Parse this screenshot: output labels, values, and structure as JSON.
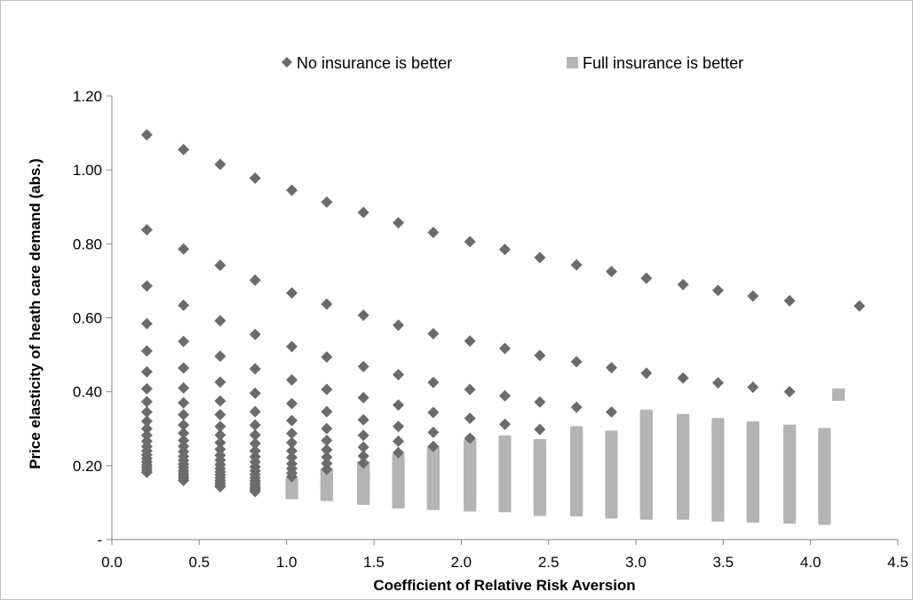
{
  "chart_data": {
    "type": "scatter",
    "title": "",
    "xlabel": "Coefficient of Relative Risk Aversion",
    "ylabel": "Price elasticity of heath care demand (abs.)",
    "xlim": [
      0,
      4.5
    ],
    "ylim": [
      0,
      1.2
    ],
    "x_ticks": [
      "0.0",
      "0.5",
      "1.0",
      "1.5",
      "2.0",
      "2.5",
      "3.0",
      "3.5",
      "4.0",
      "4.5"
    ],
    "y_ticks": [
      "-",
      "0.20",
      "0.40",
      "0.60",
      "0.80",
      "1.00",
      "1.20"
    ],
    "grid": false,
    "legend_position": "top",
    "columns": [
      0.2,
      0.41,
      0.62,
      0.82,
      1.03,
      1.23,
      1.44,
      1.64,
      1.84,
      2.05,
      2.25,
      2.45,
      2.66,
      2.86,
      3.06,
      3.27,
      3.47,
      3.67,
      3.88,
      4.08,
      4.28
    ],
    "series": [
      {
        "name": "No insurance is better",
        "color": "#6b6b6b",
        "marker": "diamond",
        "points": [
          [
            0.2,
            1.095
          ],
          [
            0.41,
            1.055
          ],
          [
            0.62,
            1.015
          ],
          [
            0.82,
            0.978
          ],
          [
            1.03,
            0.945
          ],
          [
            1.23,
            0.913
          ],
          [
            1.44,
            0.885
          ],
          [
            1.64,
            0.857
          ],
          [
            1.84,
            0.831
          ],
          [
            2.05,
            0.806
          ],
          [
            2.25,
            0.785
          ],
          [
            2.45,
            0.763
          ],
          [
            2.66,
            0.743
          ],
          [
            2.86,
            0.725
          ],
          [
            3.06,
            0.707
          ],
          [
            3.27,
            0.69
          ],
          [
            3.47,
            0.674
          ],
          [
            3.67,
            0.659
          ],
          [
            3.88,
            0.646
          ],
          [
            4.28,
            0.632
          ],
          [
            0.2,
            0.838
          ],
          [
            0.41,
            0.786
          ],
          [
            0.62,
            0.742
          ],
          [
            0.82,
            0.702
          ],
          [
            1.03,
            0.667
          ],
          [
            1.23,
            0.637
          ],
          [
            1.44,
            0.607
          ],
          [
            1.64,
            0.58
          ],
          [
            1.84,
            0.557
          ],
          [
            2.05,
            0.537
          ],
          [
            2.25,
            0.517
          ],
          [
            2.45,
            0.498
          ],
          [
            2.66,
            0.481
          ],
          [
            2.86,
            0.465
          ],
          [
            3.06,
            0.45
          ],
          [
            3.27,
            0.437
          ],
          [
            3.47,
            0.424
          ],
          [
            3.67,
            0.412
          ],
          [
            3.88,
            0.4
          ],
          [
            0.2,
            0.686
          ],
          [
            0.41,
            0.634
          ],
          [
            0.62,
            0.592
          ],
          [
            0.82,
            0.555
          ],
          [
            1.03,
            0.522
          ],
          [
            1.23,
            0.494
          ],
          [
            1.44,
            0.468
          ],
          [
            1.64,
            0.446
          ],
          [
            1.84,
            0.425
          ],
          [
            2.05,
            0.406
          ],
          [
            2.25,
            0.389
          ],
          [
            2.45,
            0.372
          ],
          [
            2.66,
            0.358
          ],
          [
            2.86,
            0.345
          ],
          [
            0.2,
            0.584
          ],
          [
            0.41,
            0.536
          ],
          [
            0.62,
            0.496
          ],
          [
            0.82,
            0.462
          ],
          [
            1.03,
            0.432
          ],
          [
            1.23,
            0.406
          ],
          [
            1.44,
            0.384
          ],
          [
            1.64,
            0.364
          ],
          [
            1.84,
            0.344
          ],
          [
            2.05,
            0.328
          ],
          [
            2.25,
            0.312
          ],
          [
            2.45,
            0.298
          ],
          [
            0.2,
            0.51
          ],
          [
            0.41,
            0.464
          ],
          [
            0.62,
            0.426
          ],
          [
            0.82,
            0.396
          ],
          [
            1.03,
            0.368
          ],
          [
            1.23,
            0.346
          ],
          [
            1.44,
            0.324
          ],
          [
            1.64,
            0.306
          ],
          [
            1.84,
            0.29
          ],
          [
            2.05,
            0.274
          ],
          [
            0.2,
            0.454
          ],
          [
            0.41,
            0.41
          ],
          [
            0.62,
            0.375
          ],
          [
            0.82,
            0.346
          ],
          [
            1.03,
            0.322
          ],
          [
            1.23,
            0.3
          ],
          [
            1.44,
            0.282
          ],
          [
            1.64,
            0.266
          ],
          [
            1.84,
            0.252
          ],
          [
            0.2,
            0.408
          ],
          [
            0.41,
            0.37
          ],
          [
            0.62,
            0.338
          ],
          [
            0.82,
            0.31
          ],
          [
            1.03,
            0.287
          ],
          [
            1.23,
            0.268
          ],
          [
            1.44,
            0.25
          ],
          [
            1.64,
            0.235
          ],
          [
            0.2,
            0.373
          ],
          [
            0.41,
            0.338
          ],
          [
            0.62,
            0.306
          ],
          [
            0.82,
            0.283
          ],
          [
            1.03,
            0.262
          ],
          [
            1.23,
            0.243
          ],
          [
            1.44,
            0.226
          ],
          [
            0.2,
            0.345
          ],
          [
            0.41,
            0.31
          ],
          [
            0.62,
            0.283
          ],
          [
            0.82,
            0.26
          ],
          [
            1.03,
            0.24
          ],
          [
            1.23,
            0.223
          ],
          [
            1.44,
            0.207
          ],
          [
            0.2,
            0.32
          ],
          [
            0.41,
            0.288
          ],
          [
            0.62,
            0.262
          ],
          [
            0.82,
            0.24
          ],
          [
            1.03,
            0.222
          ],
          [
            1.23,
            0.206
          ],
          [
            0.2,
            0.3
          ],
          [
            0.41,
            0.268
          ],
          [
            0.62,
            0.244
          ],
          [
            0.82,
            0.224
          ],
          [
            1.03,
            0.205
          ],
          [
            1.23,
            0.19
          ],
          [
            0.2,
            0.282
          ],
          [
            0.41,
            0.252
          ],
          [
            0.62,
            0.228
          ],
          [
            0.82,
            0.21
          ],
          [
            1.03,
            0.192
          ],
          [
            0.2,
            0.266
          ],
          [
            0.41,
            0.238
          ],
          [
            0.62,
            0.215
          ],
          [
            0.82,
            0.197
          ],
          [
            1.03,
            0.18
          ],
          [
            0.2,
            0.252
          ],
          [
            0.41,
            0.225
          ],
          [
            0.62,
            0.203
          ],
          [
            0.82,
            0.186
          ],
          [
            1.03,
            0.17
          ],
          [
            0.2,
            0.24
          ],
          [
            0.41,
            0.214
          ],
          [
            0.62,
            0.192
          ],
          [
            0.82,
            0.176
          ],
          [
            0.2,
            0.229
          ],
          [
            0.41,
            0.204
          ],
          [
            0.62,
            0.183
          ],
          [
            0.82,
            0.167
          ],
          [
            0.2,
            0.219
          ],
          [
            0.41,
            0.195
          ],
          [
            0.62,
            0.175
          ],
          [
            0.82,
            0.159
          ],
          [
            0.2,
            0.21
          ],
          [
            0.41,
            0.186
          ],
          [
            0.62,
            0.167
          ],
          [
            0.82,
            0.152
          ],
          [
            0.2,
            0.202
          ],
          [
            0.41,
            0.179
          ],
          [
            0.62,
            0.16
          ],
          [
            0.82,
            0.146
          ],
          [
            0.2,
            0.195
          ],
          [
            0.41,
            0.172
          ],
          [
            0.62,
            0.154
          ],
          [
            0.82,
            0.14
          ],
          [
            0.2,
            0.188
          ],
          [
            0.41,
            0.166
          ],
          [
            0.62,
            0.148
          ],
          [
            0.82,
            0.135
          ],
          [
            0.2,
            0.182
          ],
          [
            0.41,
            0.16
          ],
          [
            0.62,
            0.143
          ],
          [
            0.82,
            0.13
          ]
        ]
      },
      {
        "name": "Full insurance is better",
        "color": "#b4b4b4",
        "marker": "square",
        "columns": [
          {
            "x": 1.03,
            "top": 0.15,
            "bottom": 0.12
          },
          {
            "x": 1.23,
            "top": 0.175,
            "bottom": 0.115
          },
          {
            "x": 1.44,
            "top": 0.195,
            "bottom": 0.11
          },
          {
            "x": 1.64,
            "top": 0.215,
            "bottom": 0.1
          },
          {
            "x": 1.84,
            "top": 0.235,
            "bottom": 0.095
          },
          {
            "x": 2.05,
            "top": 0.255,
            "bottom": 0.09
          },
          {
            "x": 2.25,
            "top": 0.265,
            "bottom": 0.085
          },
          {
            "x": 2.45,
            "top": 0.255,
            "bottom": 0.08
          },
          {
            "x": 2.66,
            "top": 0.29,
            "bottom": 0.075
          },
          {
            "x": 2.86,
            "top": 0.278,
            "bottom": 0.072
          },
          {
            "x": 3.06,
            "top": 0.335,
            "bottom": 0.068
          },
          {
            "x": 3.27,
            "top": 0.323,
            "bottom": 0.065
          },
          {
            "x": 3.47,
            "top": 0.312,
            "bottom": 0.062
          },
          {
            "x": 3.67,
            "top": 0.303,
            "bottom": 0.06
          },
          {
            "x": 3.88,
            "top": 0.294,
            "bottom": 0.058
          },
          {
            "x": 4.08,
            "top": 0.285,
            "bottom": 0.056
          },
          {
            "x": 4.16,
            "top": 0.392,
            "bottom": 0.392
          }
        ]
      }
    ]
  }
}
